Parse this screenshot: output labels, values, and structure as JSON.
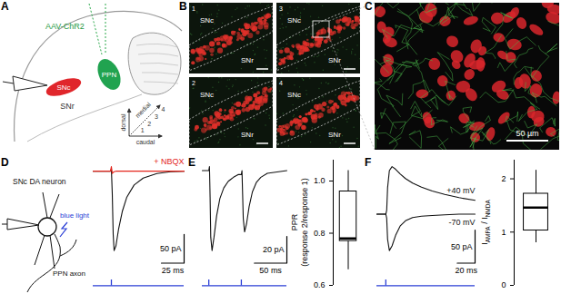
{
  "panels": {
    "A": {
      "label": "A",
      "injection": "AAV-ChR2",
      "regions": [
        "SNc",
        "PPN",
        "SNr"
      ],
      "directions": {
        "up": "dorsal",
        "diagonal": "medial",
        "right": "caudal"
      },
      "levels": [
        "1",
        "2",
        "3",
        "4"
      ]
    },
    "B": {
      "label": "B",
      "tiles": [
        {
          "number": "1",
          "regions": [
            "SNc",
            "SNr"
          ]
        },
        {
          "number": "2",
          "regions": [
            "SNc",
            "SNr"
          ]
        },
        {
          "number": "3",
          "regions": [
            "SNc",
            "SNr"
          ]
        },
        {
          "number": "4",
          "regions": [
            "SNc",
            "SNr"
          ]
        }
      ]
    },
    "C": {
      "label": "C",
      "scale_bar": "50 µm"
    },
    "D": {
      "label": "D",
      "cell": "SNc DA neuron",
      "light": "blue light",
      "axon": "PPN axon"
    },
    "E": {
      "label": "E"
    },
    "F": {
      "label": "F"
    }
  },
  "chart_data": [
    {
      "type": "line",
      "tick_labels": false,
      "x": [
        0,
        18,
        19,
        20,
        21,
        22,
        23,
        25,
        28,
        32,
        37,
        45,
        55,
        70,
        85,
        100
      ],
      "series": [
        {
          "color": "#111111",
          "values": [
            0,
            0,
            0,
            4,
            -40,
            -110,
            -138,
            -130,
            -100,
            -70,
            -45,
            -24,
            -12,
            -4,
            -1,
            0
          ]
        },
        {
          "name": "+ NBQX",
          "color": "#e3241b",
          "values": [
            0,
            0,
            0,
            8,
            -4,
            -2,
            -1,
            0,
            0,
            0,
            0,
            0,
            0,
            0,
            0,
            0
          ]
        }
      ],
      "stimulus": {
        "color": "#2b3fd6",
        "x": [
          20
        ]
      },
      "scale_bar": {
        "x": {
          "value": 25,
          "label": "25 ms"
        },
        "y": {
          "value": 50,
          "label": "50 pA"
        }
      }
    },
    {
      "type": "line",
      "tick_labels": false,
      "x": [
        0,
        9,
        10,
        11,
        12,
        13,
        15,
        18,
        22,
        27,
        33,
        40,
        48,
        55,
        59,
        60,
        61,
        62,
        63,
        65,
        68,
        72,
        77,
        83,
        90,
        100,
        115,
        130
      ],
      "series": [
        {
          "color": "#111111",
          "values": [
            0,
            0,
            0,
            3,
            -20,
            -50,
            -60,
            -50,
            -34,
            -21,
            -13,
            -8,
            -5,
            -3,
            -3,
            -3,
            0,
            -18,
            -36,
            -46,
            -40,
            -27,
            -16,
            -9,
            -5,
            -2,
            -1,
            0
          ]
        }
      ],
      "stimulus": {
        "color": "#2b3fd6",
        "x": [
          10,
          60
        ]
      },
      "scale_bar": {
        "x": {
          "value": 50,
          "label": "50 ms"
        },
        "y": {
          "value": 20,
          "label": "20 pA"
        }
      }
    },
    {
      "type": "box",
      "tick_labels": "y",
      "ylabel": [
        "PPR",
        "(response 2/response 1)"
      ],
      "box": {
        "min": 0.66,
        "q1": 0.77,
        "median": 0.78,
        "q3": 0.96,
        "max": 1.04
      },
      "ylim": [
        0.6,
        1.08
      ],
      "yticks": [
        0.6,
        0.8,
        {
          "value": 1,
          "label": "1.0"
        }
      ]
    },
    {
      "type": "line",
      "tick_labels": false,
      "x": [
        0,
        8,
        10,
        11,
        12,
        14,
        17,
        21,
        26,
        32,
        40,
        50,
        62,
        76,
        92,
        110
      ],
      "series": [
        {
          "name": "+40 mV",
          "color": "#111111",
          "values": [
            0,
            0,
            0,
            6,
            40,
            66,
            72,
            68,
            61,
            54,
            47,
            41,
            35,
            30,
            25,
            21
          ]
        },
        {
          "name": "-70 mV",
          "color": "#111111",
          "values": [
            0,
            0,
            0,
            -6,
            -38,
            -55,
            -48,
            -32,
            -18,
            -10,
            -5,
            -3,
            -2,
            -1,
            0,
            0
          ]
        }
      ],
      "stimulus": {
        "color": "#2b3fd6",
        "x": [
          10
        ]
      },
      "scale_bar": {
        "x": {
          "value": 20,
          "label": "20 ms"
        },
        "y": {
          "value": 50,
          "label": "50 pA"
        }
      }
    },
    {
      "type": "box",
      "tick_labels": "y",
      "ylabel": [
        [
          {
            "text": "I"
          },
          {
            "sub": "AMPA"
          },
          {
            "text": " / I"
          },
          {
            "sub": "NMDA"
          }
        ]
      ],
      "box": {
        "min": 0.8,
        "q1": 1.03,
        "median": 1.46,
        "q3": 1.72,
        "max": 2.16
      },
      "ylim": [
        0,
        2.35
      ],
      "yticks": [
        0,
        1,
        2
      ]
    }
  ]
}
